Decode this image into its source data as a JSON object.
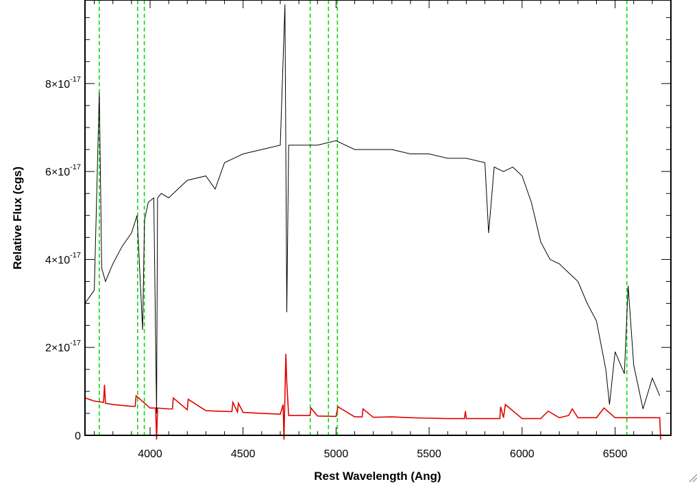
{
  "chart_data": {
    "type": "line",
    "title": "",
    "xlabel": "Rest Wavelength (Ang)",
    "ylabel": "Relative Flux (cgs)",
    "xlim": [
      3650,
      6800
    ],
    "ylim": [
      0,
      9.9e-17
    ],
    "x_ticks": [
      {
        "value": 4000,
        "label": "4000"
      },
      {
        "value": 4500,
        "label": "4500"
      },
      {
        "value": 5000,
        "label": "5000"
      },
      {
        "value": 5500,
        "label": "5500"
      },
      {
        "value": 6000,
        "label": "6000"
      },
      {
        "value": 6500,
        "label": "6500"
      }
    ],
    "y_ticks": [
      {
        "value": 0,
        "label": "0",
        "exponent": ""
      },
      {
        "value": 2e-17,
        "label": "2×10",
        "exponent": "-17"
      },
      {
        "value": 4e-17,
        "label": "4×10",
        "exponent": "-17"
      },
      {
        "value": 6e-17,
        "label": "6×10",
        "exponent": "-17"
      },
      {
        "value": 8e-17,
        "label": "8×10",
        "exponent": "-17"
      }
    ],
    "grid": false,
    "series": [
      {
        "color": "#000000",
        "x": [
          3650,
          3700,
          3727,
          3740,
          3760,
          3800,
          3850,
          3900,
          3930,
          3960,
          3970,
          3990,
          4020,
          4035,
          4040,
          4060,
          4100,
          4150,
          4200,
          4300,
          4350,
          4400,
          4450,
          4500,
          4600,
          4700,
          4725,
          4735,
          4745,
          4800,
          4900,
          5000,
          5100,
          5200,
          5300,
          5400,
          5500,
          5600,
          5700,
          5800,
          5820,
          5850,
          5900,
          5950,
          6000,
          6050,
          6100,
          6150,
          6200,
          6250,
          6300,
          6350,
          6400,
          6450,
          6470,
          6500,
          6550,
          6570,
          6600,
          6650,
          6700,
          6740
        ],
        "y": [
          3e-17,
          3.3e-17,
          7.8e-17,
          3.8e-17,
          3.5e-17,
          3.9e-17,
          4.3e-17,
          4.6e-17,
          5e-17,
          2.4e-17,
          4.9e-17,
          5.3e-17,
          5.4e-17,
          5e-18,
          5.4e-17,
          5.5e-17,
          5.4e-17,
          5.6e-17,
          5.8e-17,
          5.9e-17,
          5.6e-17,
          6.2e-17,
          6.3e-17,
          6.4e-17,
          6.5e-17,
          6.6e-17,
          9.8e-17,
          2.8e-17,
          6.6e-17,
          6.6e-17,
          6.6e-17,
          6.7e-17,
          6.5e-17,
          6.5e-17,
          6.5e-17,
          6.4e-17,
          6.4e-17,
          6.3e-17,
          6.3e-17,
          6.2e-17,
          4.6e-17,
          6.1e-17,
          6e-17,
          6.1e-17,
          5.9e-17,
          5.3e-17,
          4.4e-17,
          4e-17,
          3.9e-17,
          3.7e-17,
          3.5e-17,
          3e-17,
          2.6e-17,
          1.5e-17,
          7e-18,
          1.9e-17,
          1.4e-17,
          3.4e-17,
          1.6e-17,
          6e-18,
          1.3e-17,
          9e-18
        ]
      },
      {
        "color": "#e00000",
        "x": [
          3650,
          3700,
          3750,
          3755,
          3760,
          3800,
          3900,
          3920,
          3925,
          4000,
          4030,
          4035,
          4040,
          4100,
          4120,
          4125,
          4200,
          4205,
          4300,
          4440,
          4445,
          4470,
          4475,
          4500,
          4600,
          4700,
          4715,
          4720,
          4730,
          4735,
          4745,
          4800,
          4860,
          4865,
          4900,
          5000,
          5010,
          5100,
          5140,
          5145,
          5200,
          5300,
          5400,
          5500,
          5600,
          5690,
          5695,
          5700,
          5800,
          5880,
          5885,
          5900,
          5910,
          6000,
          6100,
          6140,
          6200,
          6250,
          6270,
          6300,
          6400,
          6440,
          6500,
          6550,
          6600,
          6650,
          6700,
          6740,
          6745
        ],
        "y": [
          8.5e-18,
          7.8e-18,
          7.5e-18,
          1.15e-17,
          7.3e-18,
          7e-18,
          6.6e-18,
          6.6e-18,
          9e-18,
          6.2e-18,
          6.2e-18,
          -1e-18,
          6.2e-18,
          6e-18,
          6e-18,
          8.5e-18,
          5.8e-18,
          8.2e-18,
          5.6e-18,
          5.4e-18,
          7.5e-18,
          5.3e-18,
          7.3e-18,
          5.2e-18,
          5e-18,
          4.8e-18,
          7e-18,
          -1e-18,
          1.85e-17,
          1.2e-17,
          4.5e-18,
          4.5e-18,
          4.5e-18,
          6.2e-18,
          4.4e-18,
          4.3e-18,
          6.5e-18,
          4.2e-18,
          4.2e-18,
          6e-18,
          4.1e-18,
          4.2e-18,
          4e-18,
          3.9e-18,
          3.8e-18,
          3.8e-18,
          5.5e-18,
          3.8e-18,
          3.8e-18,
          3.8e-18,
          6.5e-18,
          4e-18,
          7e-18,
          3.8e-18,
          3.8e-18,
          5.5e-18,
          4e-18,
          4.5e-18,
          6e-18,
          4e-18,
          4e-18,
          6.2e-18,
          4e-18,
          4e-18,
          4e-18,
          4e-18,
          4e-18,
          4e-18,
          -1e-18
        ]
      }
    ],
    "reference_lines": [
      3727,
      3933,
      3969,
      4861,
      4959,
      5007,
      6563
    ],
    "reference_line_color": "#00dd00"
  }
}
